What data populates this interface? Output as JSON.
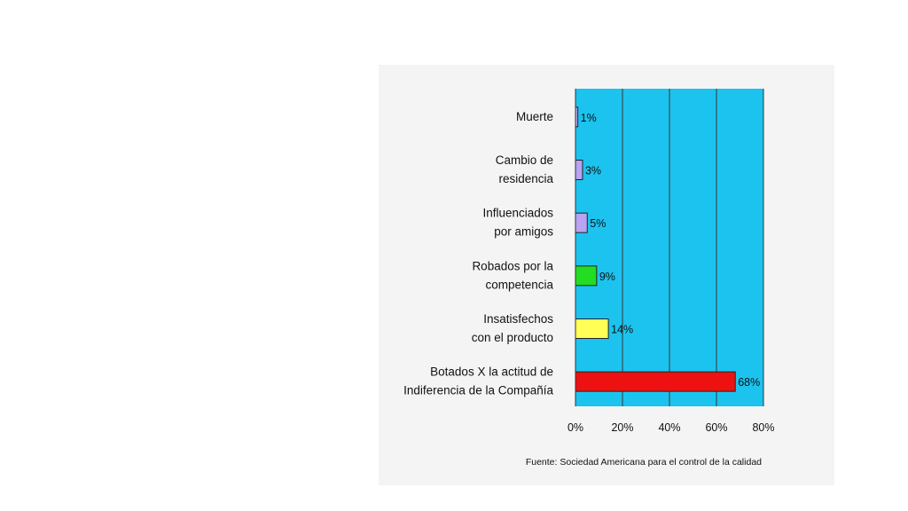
{
  "chart_data": {
    "type": "bar",
    "orientation": "horizontal",
    "categories": [
      [
        "Muerte"
      ],
      [
        "Cambio de",
        "residencia"
      ],
      [
        "Influenciados",
        "por amigos"
      ],
      [
        "Robados por la",
        "competencia"
      ],
      [
        "Insatisfechos",
        "con el producto"
      ],
      [
        "Botados X la actitud de",
        "Indiferencia de la Compañía"
      ]
    ],
    "values": [
      1,
      3,
      5,
      9,
      14,
      68
    ],
    "value_labels": [
      "1%",
      "3%",
      "5%",
      "9%",
      "14%",
      "68%"
    ],
    "bar_colors": [
      "#b8a4f2",
      "#b8a4f2",
      "#b8a4f2",
      "#22dd22",
      "#ffff55",
      "#ee1111"
    ],
    "xlim": [
      0,
      80
    ],
    "xticks": [
      0,
      20,
      40,
      60,
      80
    ],
    "xtick_labels": [
      "0%",
      "20%",
      "40%",
      "60%",
      "80%"
    ],
    "plot_background": "#1cc3ef",
    "grid": true,
    "source": "Fuente:  Sociedad Americana para el control de la calidad"
  }
}
